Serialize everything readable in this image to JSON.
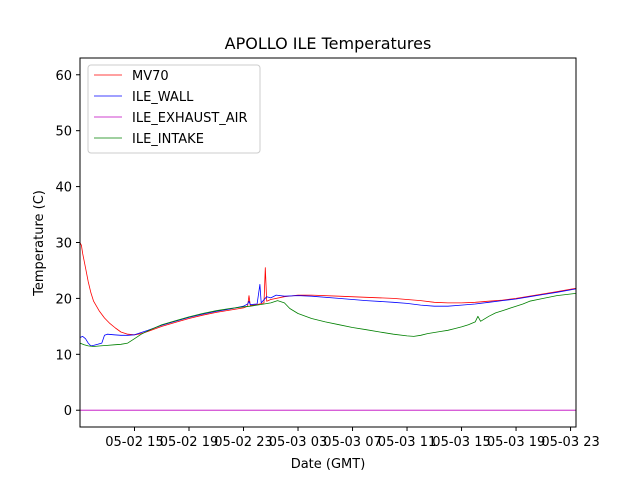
{
  "chart_data": {
    "type": "line",
    "title": "APOLLO ILE Temperatures",
    "xlabel": "Date (GMT)",
    "ylabel": "Temperature (C)",
    "xlim": [
      11.0,
      47.4
    ],
    "ylim": [
      -3.0,
      63.0
    ],
    "x_units": "hours since 05-02 00:00 GMT",
    "x_ticks": [
      {
        "value": 15,
        "label": "05-02 15"
      },
      {
        "value": 19,
        "label": "05-02 19"
      },
      {
        "value": 23,
        "label": "05-02 23"
      },
      {
        "value": 27,
        "label": "05-03 03"
      },
      {
        "value": 31,
        "label": "05-03 07"
      },
      {
        "value": 35,
        "label": "05-03 11"
      },
      {
        "value": 39,
        "label": "05-03 15"
      },
      {
        "value": 43,
        "label": "05-03 19"
      },
      {
        "value": 47,
        "label": "05-03 23"
      }
    ],
    "y_ticks": [
      0,
      10,
      20,
      30,
      40,
      50,
      60
    ],
    "legend_position": "top-left",
    "series": [
      {
        "name": "MV70",
        "color": "#ff0000",
        "points": [
          [
            11.0,
            30.0
          ],
          [
            11.1,
            29.5
          ],
          [
            11.2,
            28.0
          ],
          [
            11.4,
            25.5
          ],
          [
            11.6,
            23.0
          ],
          [
            11.8,
            21.0
          ],
          [
            12.0,
            19.5
          ],
          [
            12.4,
            17.8
          ],
          [
            12.8,
            16.5
          ],
          [
            13.2,
            15.5
          ],
          [
            13.6,
            14.7
          ],
          [
            14.0,
            14.0
          ],
          [
            14.5,
            13.6
          ],
          [
            15.0,
            13.5
          ],
          [
            15.5,
            13.7
          ],
          [
            16.0,
            14.1
          ],
          [
            17.0,
            15.0
          ],
          [
            18.0,
            15.7
          ],
          [
            19.0,
            16.4
          ],
          [
            20.0,
            17.0
          ],
          [
            21.0,
            17.5
          ],
          [
            22.0,
            17.9
          ],
          [
            23.0,
            18.3
          ],
          [
            23.3,
            18.6
          ],
          [
            23.4,
            20.5
          ],
          [
            23.5,
            18.7
          ],
          [
            24.0,
            18.9
          ],
          [
            24.5,
            19.2
          ],
          [
            24.6,
            25.5
          ],
          [
            24.7,
            19.5
          ],
          [
            25.0,
            19.8
          ],
          [
            26.0,
            20.3
          ],
          [
            27.0,
            20.6
          ],
          [
            28.0,
            20.6
          ],
          [
            30.0,
            20.4
          ],
          [
            32.0,
            20.2
          ],
          [
            34.0,
            20.0
          ],
          [
            35.0,
            19.8
          ],
          [
            36.0,
            19.6
          ],
          [
            37.0,
            19.3
          ],
          [
            38.0,
            19.2
          ],
          [
            39.0,
            19.2
          ],
          [
            40.0,
            19.3
          ],
          [
            41.0,
            19.5
          ],
          [
            42.0,
            19.7
          ],
          [
            43.0,
            20.0
          ],
          [
            44.0,
            20.4
          ],
          [
            45.0,
            20.8
          ],
          [
            46.0,
            21.2
          ],
          [
            47.4,
            21.8
          ]
        ]
      },
      {
        "name": "ILE_WALL",
        "color": "#0000ff",
        "points": [
          [
            11.0,
            13.0
          ],
          [
            11.2,
            13.2
          ],
          [
            11.4,
            12.8
          ],
          [
            11.6,
            12.0
          ],
          [
            11.8,
            11.5
          ],
          [
            12.0,
            11.6
          ],
          [
            12.3,
            11.8
          ],
          [
            12.6,
            12.0
          ],
          [
            12.8,
            13.4
          ],
          [
            13.0,
            13.6
          ],
          [
            13.5,
            13.5
          ],
          [
            14.0,
            13.4
          ],
          [
            14.5,
            13.4
          ],
          [
            15.0,
            13.5
          ],
          [
            16.0,
            14.3
          ],
          [
            17.0,
            15.2
          ],
          [
            18.0,
            15.9
          ],
          [
            19.0,
            16.6
          ],
          [
            20.0,
            17.2
          ],
          [
            21.0,
            17.7
          ],
          [
            22.0,
            18.1
          ],
          [
            23.0,
            18.6
          ],
          [
            23.3,
            19.0
          ],
          [
            23.4,
            19.5
          ],
          [
            23.5,
            18.9
          ],
          [
            24.0,
            19.0
          ],
          [
            24.2,
            22.5
          ],
          [
            24.3,
            19.2
          ],
          [
            24.7,
            20.3
          ],
          [
            25.0,
            20.1
          ],
          [
            25.4,
            20.6
          ],
          [
            26.0,
            20.4
          ],
          [
            27.0,
            20.5
          ],
          [
            28.0,
            20.4
          ],
          [
            30.0,
            20.0
          ],
          [
            32.0,
            19.6
          ],
          [
            34.0,
            19.3
          ],
          [
            35.0,
            19.1
          ],
          [
            36.0,
            18.8
          ],
          [
            37.0,
            18.6
          ],
          [
            38.0,
            18.6
          ],
          [
            39.0,
            18.8
          ],
          [
            40.0,
            19.0
          ],
          [
            41.0,
            19.3
          ],
          [
            42.0,
            19.6
          ],
          [
            43.0,
            19.9
          ],
          [
            44.0,
            20.3
          ],
          [
            45.0,
            20.7
          ],
          [
            46.0,
            21.1
          ],
          [
            47.4,
            21.7
          ]
        ]
      },
      {
        "name": "ILE_EXHAUST_AIR",
        "color": "#bf00bf",
        "points": [
          [
            11.0,
            0.0
          ],
          [
            47.4,
            0.0
          ]
        ]
      },
      {
        "name": "ILE_INTAKE",
        "color": "#008000",
        "points": [
          [
            11.0,
            12.0
          ],
          [
            11.3,
            11.7
          ],
          [
            11.6,
            11.5
          ],
          [
            12.0,
            11.4
          ],
          [
            12.5,
            11.5
          ],
          [
            13.0,
            11.6
          ],
          [
            13.5,
            11.7
          ],
          [
            14.0,
            11.8
          ],
          [
            14.5,
            12.0
          ],
          [
            15.0,
            12.8
          ],
          [
            15.5,
            13.6
          ],
          [
            16.0,
            14.2
          ],
          [
            17.0,
            15.3
          ],
          [
            18.0,
            16.0
          ],
          [
            19.0,
            16.7
          ],
          [
            20.0,
            17.3
          ],
          [
            21.0,
            17.8
          ],
          [
            22.0,
            18.2
          ],
          [
            23.0,
            18.5
          ],
          [
            23.5,
            18.6
          ],
          [
            24.0,
            18.8
          ],
          [
            24.5,
            19.0
          ],
          [
            25.0,
            19.2
          ],
          [
            25.5,
            19.6
          ],
          [
            26.0,
            19.2
          ],
          [
            26.4,
            18.2
          ],
          [
            27.0,
            17.3
          ],
          [
            28.0,
            16.4
          ],
          [
            29.0,
            15.8
          ],
          [
            30.0,
            15.3
          ],
          [
            31.0,
            14.8
          ],
          [
            32.0,
            14.4
          ],
          [
            33.0,
            14.0
          ],
          [
            34.0,
            13.6
          ],
          [
            35.0,
            13.3
          ],
          [
            35.5,
            13.2
          ],
          [
            36.0,
            13.4
          ],
          [
            36.5,
            13.7
          ],
          [
            37.0,
            13.9
          ],
          [
            37.5,
            14.1
          ],
          [
            38.0,
            14.3
          ],
          [
            38.5,
            14.6
          ],
          [
            39.0,
            14.9
          ],
          [
            39.5,
            15.3
          ],
          [
            40.0,
            15.8
          ],
          [
            40.2,
            16.8
          ],
          [
            40.4,
            15.9
          ],
          [
            41.0,
            16.8
          ],
          [
            41.5,
            17.4
          ],
          [
            42.0,
            17.8
          ],
          [
            43.0,
            18.6
          ],
          [
            43.5,
            19.0
          ],
          [
            44.0,
            19.5
          ],
          [
            45.0,
            20.0
          ],
          [
            46.0,
            20.5
          ],
          [
            47.4,
            20.9
          ]
        ]
      }
    ]
  }
}
